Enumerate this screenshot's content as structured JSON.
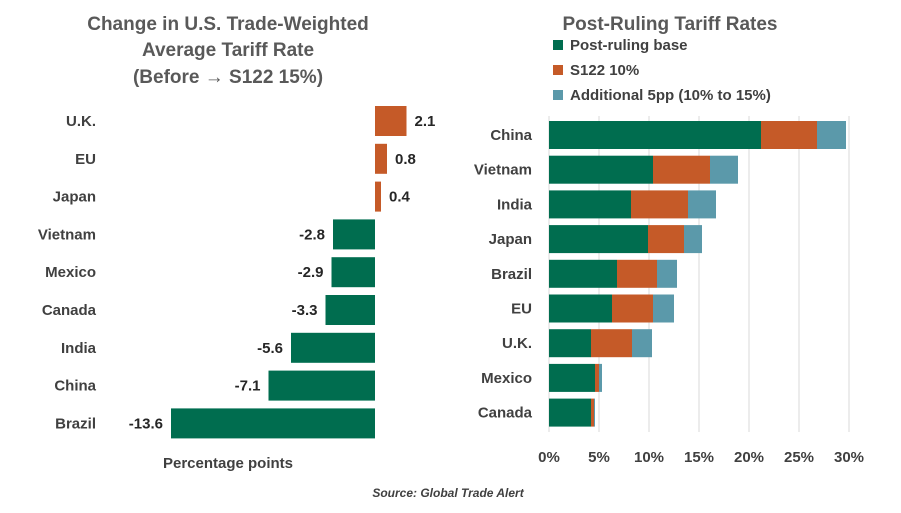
{
  "source_note": "Source: Global Trade Alert",
  "chart_data": [
    {
      "type": "bar",
      "orientation": "horizontal",
      "title_lines": [
        "Change in U.S. Trade-Weighted",
        "Average Tariff Rate",
        "(Before → S122 15%)"
      ],
      "xlabel": "Percentage points",
      "categories": [
        "U.K.",
        "EU",
        "Japan",
        "Vietnam",
        "Mexico",
        "Canada",
        "India",
        "China",
        "Brazil"
      ],
      "values": [
        2.1,
        0.8,
        0.4,
        -2.8,
        -2.9,
        -3.3,
        -5.6,
        -7.1,
        -13.6
      ],
      "value_labels": [
        "2.1",
        "0.8",
        "0.4",
        "-2.8",
        "-2.9",
        "-3.3",
        "-5.6",
        "-7.1",
        "-13.6"
      ],
      "colors": {
        "positive": "#C55A28",
        "negative": "#006D4F"
      },
      "grid": false
    },
    {
      "type": "bar",
      "orientation": "horizontal",
      "stacked": true,
      "title": "Post-Ruling Tariff Rates",
      "categories": [
        "China",
        "Vietnam",
        "India",
        "Japan",
        "Brazil",
        "EU",
        "U.K.",
        "Mexico",
        "Canada"
      ],
      "series": [
        {
          "name": "Post-ruling base",
          "color": "#006D4F",
          "values": [
            21.2,
            10.4,
            8.2,
            9.9,
            6.8,
            6.3,
            4.2,
            4.6,
            4.2
          ]
        },
        {
          "name": "S122 10%",
          "color": "#C55A28",
          "values": [
            5.6,
            5.7,
            5.7,
            3.6,
            4.0,
            4.1,
            4.1,
            0.4,
            0.3
          ]
        },
        {
          "name": "Additional 5pp (10% to 15%)",
          "color": "#5B99AA",
          "values": [
            2.9,
            2.8,
            2.8,
            1.8,
            2.0,
            2.1,
            2.0,
            0.3,
            0.1
          ]
        }
      ],
      "xlim": [
        0,
        30
      ],
      "xticks": [
        "0%",
        "5%",
        "10%",
        "15%",
        "20%",
        "25%",
        "30%"
      ],
      "xtick_values": [
        0,
        5,
        10,
        15,
        20,
        25,
        30
      ],
      "grid": true,
      "legend_position": "top"
    }
  ]
}
